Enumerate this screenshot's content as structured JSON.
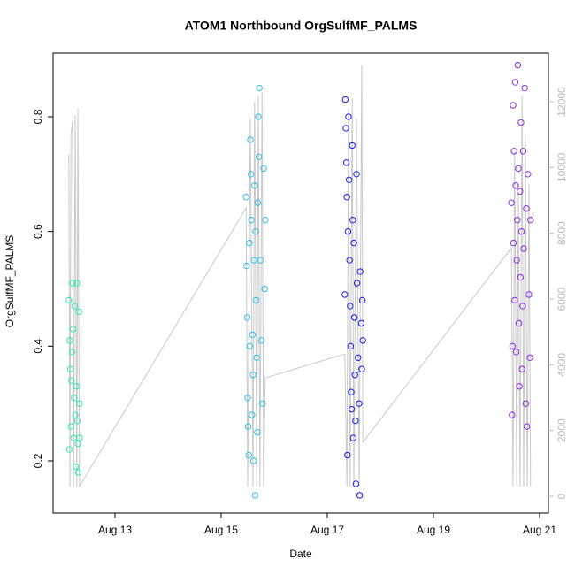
{
  "chart_data": {
    "type": "scatter",
    "title": "ATOM1 Northbound OrgSulfMF_PALMS",
    "x_label": "Date",
    "y_label": "OrgSulfMF_PALMS",
    "xlim": [
      11.833,
      21.167
    ],
    "xticks": [
      {
        "value": 13,
        "label": "Aug 13"
      },
      {
        "value": 15,
        "label": "Aug 15"
      },
      {
        "value": 17,
        "label": "Aug 17"
      },
      {
        "value": 19,
        "label": "Aug 19"
      },
      {
        "value": 21,
        "label": "Aug 21"
      }
    ],
    "ylim": [
      0.109,
      0.911
    ],
    "yticks": [
      0.2,
      0.4,
      0.6,
      0.8
    ],
    "y2lim": [
      -511,
      13480
    ],
    "y2ticks": [
      0,
      2000,
      4000,
      6000,
      8000,
      10000,
      12000
    ],
    "y2_color": "#bbbbbb",
    "series": [
      {
        "color": "#2ee8b0",
        "x": [
          12.13,
          12.14,
          12.15,
          12.16,
          12.17,
          12.18,
          12.19,
          12.2,
          12.21,
          12.22,
          12.23,
          12.24,
          12.25,
          12.26,
          12.27,
          12.28,
          12.29,
          12.3,
          12.31,
          12.32,
          12.33,
          12.33
        ],
        "values": [
          0.48,
          0.22,
          0.41,
          0.36,
          0.26,
          0.34,
          0.39,
          0.51,
          0.43,
          0.24,
          0.31,
          0.47,
          0.28,
          0.19,
          0.33,
          0.51,
          0.27,
          0.23,
          0.18,
          0.46,
          0.3,
          0.24
        ]
      },
      {
        "color": "#30bfe8",
        "x": [
          15.47,
          15.48,
          15.49,
          15.5,
          15.51,
          15.52,
          15.53,
          15.54,
          15.55,
          15.56,
          15.57,
          15.58,
          15.59,
          15.6,
          15.61,
          15.62,
          15.63,
          15.64,
          15.65,
          15.66,
          15.67,
          15.68,
          15.69,
          15.7,
          15.71,
          15.72,
          15.74,
          15.76,
          15.78,
          15.8,
          15.82,
          15.83
        ],
        "values": [
          0.66,
          0.54,
          0.45,
          0.31,
          0.26,
          0.21,
          0.58,
          0.4,
          0.76,
          0.7,
          0.62,
          0.28,
          0.42,
          0.35,
          0.2,
          0.55,
          0.68,
          0.14,
          0.6,
          0.48,
          0.38,
          0.25,
          0.65,
          0.8,
          0.73,
          0.85,
          0.55,
          0.41,
          0.3,
          0.71,
          0.5,
          0.62
        ]
      },
      {
        "color": "#1a1aee",
        "x": [
          17.33,
          17.34,
          17.35,
          17.36,
          17.37,
          17.38,
          17.39,
          17.4,
          17.41,
          17.42,
          17.43,
          17.44,
          17.45,
          17.46,
          17.47,
          17.48,
          17.49,
          17.5,
          17.51,
          17.52,
          17.53,
          17.54,
          17.55,
          17.56,
          17.58,
          17.6,
          17.61,
          17.62,
          17.64,
          17.65,
          17.66,
          17.67
        ],
        "values": [
          0.49,
          0.83,
          0.78,
          0.72,
          0.66,
          0.21,
          0.6,
          0.8,
          0.69,
          0.55,
          0.47,
          0.4,
          0.32,
          0.29,
          0.75,
          0.62,
          0.24,
          0.58,
          0.45,
          0.35,
          0.27,
          0.16,
          0.7,
          0.51,
          0.38,
          0.3,
          0.14,
          0.53,
          0.44,
          0.36,
          0.48,
          0.41
        ]
      },
      {
        "color": "#8a2be2",
        "x": [
          20.47,
          20.48,
          20.49,
          20.5,
          20.51,
          20.52,
          20.53,
          20.54,
          20.55,
          20.56,
          20.57,
          20.58,
          20.59,
          20.6,
          20.61,
          20.62,
          20.63,
          20.64,
          20.65,
          20.66,
          20.67,
          20.68,
          20.69,
          20.7,
          20.72,
          20.74,
          20.75,
          20.76,
          20.78,
          20.8,
          20.82,
          20.83
        ],
        "values": [
          0.65,
          0.28,
          0.4,
          0.82,
          0.58,
          0.74,
          0.48,
          0.86,
          0.68,
          0.39,
          0.55,
          0.62,
          0.89,
          0.71,
          0.44,
          0.33,
          0.67,
          0.52,
          0.79,
          0.6,
          0.36,
          0.47,
          0.74,
          0.57,
          0.85,
          0.3,
          0.64,
          0.26,
          0.7,
          0.49,
          0.38,
          0.62
        ]
      },
      {
        "color": "#c8c8c8",
        "axis": "y2",
        "x": [
          12.13,
          12.15,
          12.17,
          12.2,
          12.22,
          12.25,
          12.28,
          12.3,
          12.33,
          15.47,
          15.5,
          15.55,
          15.6,
          15.63,
          15.67,
          15.7,
          15.73,
          15.77,
          15.8,
          15.83,
          17.33,
          17.37,
          17.4,
          17.43,
          17.47,
          17.5,
          17.55,
          17.6,
          17.65,
          17.67,
          20.47,
          20.5,
          20.53,
          20.57,
          20.6,
          20.63,
          20.67,
          20.7,
          20.73,
          20.77,
          20.8,
          20.83
        ],
        "values": [
          10400,
          300,
          11000,
          11400,
          300,
          11600,
          300,
          11800,
          300,
          8770,
          300,
          11500,
          300,
          12000,
          300,
          12200,
          300,
          12300,
          300,
          3600,
          4330,
          300,
          11800,
          300,
          12100,
          300,
          11500,
          300,
          13100,
          1640,
          7560,
          300,
          10500,
          300,
          9200,
          300,
          12200,
          300,
          11000,
          300,
          9500,
          300
        ]
      }
    ]
  }
}
